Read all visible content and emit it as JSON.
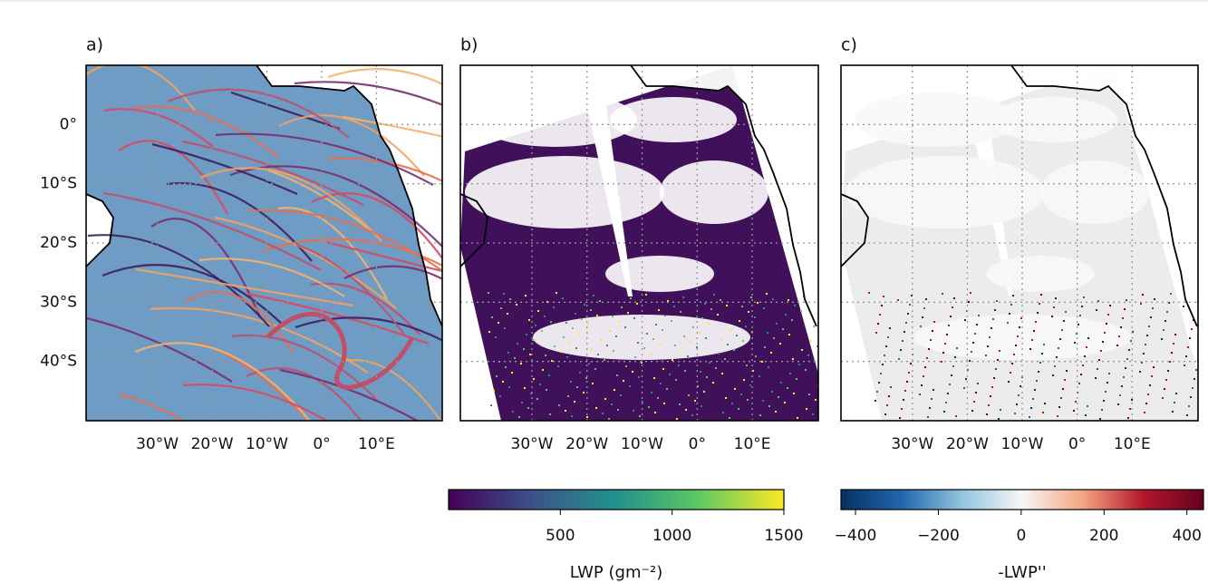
{
  "panels": [
    {
      "label": "a)"
    },
    {
      "label": "b)"
    },
    {
      "label": "c)"
    }
  ],
  "map": {
    "lon_lim": [
      -43,
      22
    ],
    "lat_lim": [
      -50,
      10
    ],
    "lon_ticks": [
      {
        "value": -30,
        "label": "30°W"
      },
      {
        "value": -20,
        "label": "20°W"
      },
      {
        "value": -10,
        "label": "10°W"
      },
      {
        "value": 0,
        "label": "0°"
      },
      {
        "value": 10,
        "label": "10°E"
      }
    ],
    "lat_ticks": [
      {
        "value": 0,
        "label": "0°"
      },
      {
        "value": -10,
        "label": "10°S"
      },
      {
        "value": -20,
        "label": "20°S"
      },
      {
        "value": -30,
        "label": "30°S"
      },
      {
        "value": -40,
        "label": "40°S"
      }
    ]
  },
  "colorbars": [
    {
      "label": "LWP (gm⁻²)",
      "lim": [
        0,
        1500
      ],
      "ticks": [
        500,
        1000,
        1500
      ],
      "colors": [
        "#440154",
        "#3b528b",
        "#21918c",
        "#5ec962",
        "#fde725"
      ]
    },
    {
      "label": "-LWP''",
      "lim": [
        -435,
        440
      ],
      "ticks": [
        {
          "value": -400,
          "label": "−400"
        },
        {
          "value": -200,
          "label": "−200"
        },
        {
          "value": 0,
          "label": "0"
        },
        {
          "value": 200,
          "label": "200"
        },
        {
          "value": 400,
          "label": "400"
        }
      ],
      "colors": [
        "#053061",
        "#2166ac",
        "#92c5de",
        "#f7f7f7",
        "#f4a582",
        "#b2182b",
        "#67001f"
      ]
    }
  ]
}
